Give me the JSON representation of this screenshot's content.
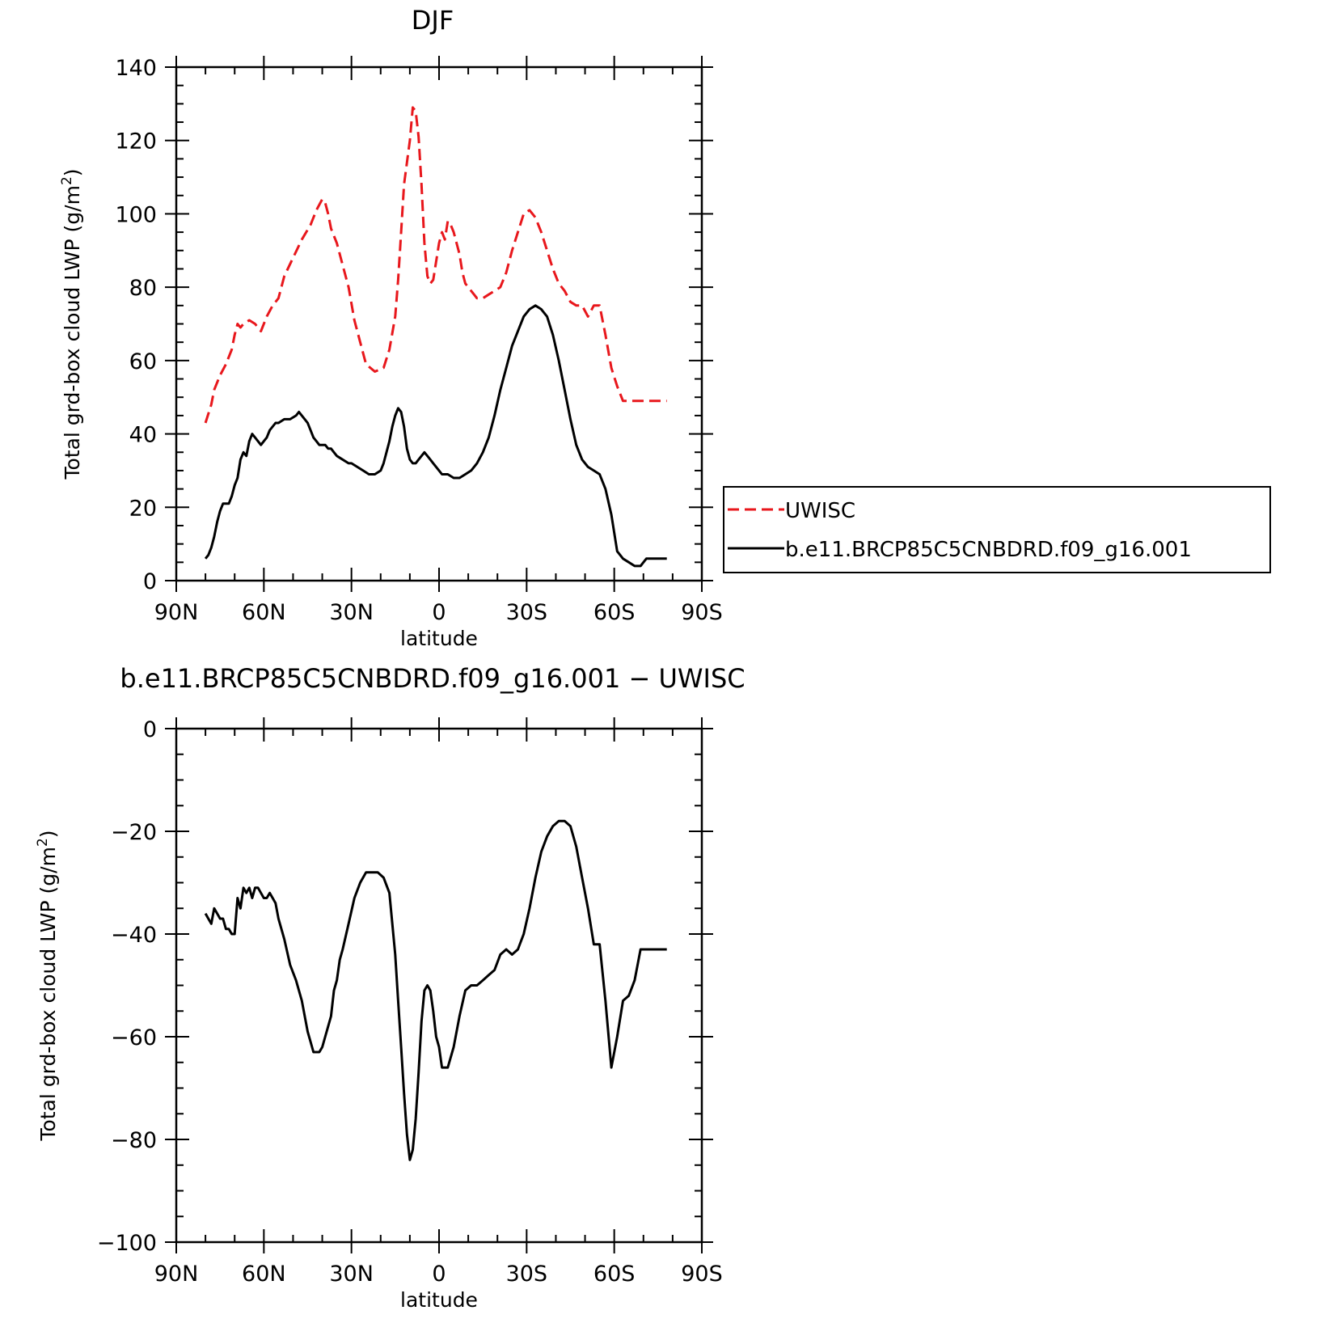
{
  "chart_data": [
    {
      "type": "line",
      "title": "DJF",
      "xlabel": "latitude",
      "ylabel": "Total grd-box cloud LWP (g/m²)",
      "ylabel_main": "Total grd-box cloud LWP (g/m",
      "ylabel_sup": "2",
      "ylabel_close": ")",
      "xlim": [
        90,
        -90
      ],
      "ylim": [
        0,
        140
      ],
      "xticks": [
        90,
        60,
        30,
        0,
        -30,
        -60,
        -90
      ],
      "xtick_labels": [
        "90N",
        "60N",
        "30N",
        "0",
        "30S",
        "60S",
        "90S"
      ],
      "yticks": [
        0,
        20,
        40,
        60,
        80,
        100,
        120,
        140
      ],
      "ytick_labels": [
        "0",
        "20",
        "40",
        "60",
        "80",
        "100",
        "120",
        "140"
      ],
      "legend_position": "right",
      "series": [
        {
          "name": "UWISC",
          "color": "#e8171c",
          "dash": "dashed",
          "x": [
            80,
            78,
            77,
            75,
            73,
            71,
            70,
            69,
            68,
            67,
            65,
            63,
            61,
            59,
            57,
            55,
            53,
            50,
            47,
            44,
            42,
            40,
            39,
            38,
            37,
            35,
            33,
            31,
            29,
            27,
            25,
            22,
            19,
            17,
            15,
            14,
            13,
            12,
            10,
            9,
            8,
            7,
            6,
            5,
            4,
            3,
            2,
            1,
            0,
            -1,
            -2,
            -3,
            -4,
            -5,
            -7,
            -8,
            -9,
            -10,
            -11,
            -12,
            -13,
            -15,
            -17,
            -19,
            -21,
            -23,
            -25,
            -27,
            -29,
            -31,
            -33,
            -35,
            -37,
            -39,
            -41,
            -43,
            -45,
            -47,
            -49,
            -51,
            -53,
            -55,
            -57,
            -59,
            -61,
            -63,
            -65,
            -67,
            -69,
            -70,
            -71,
            -72,
            -73,
            -74,
            -75,
            -76,
            -77,
            -78
          ],
          "y": [
            43,
            48,
            52,
            56,
            59,
            63,
            67,
            70,
            69,
            70,
            71,
            70,
            68,
            72,
            75,
            77,
            83,
            88,
            93,
            97,
            101,
            104,
            103,
            100,
            96,
            92,
            86,
            80,
            71,
            65,
            59,
            57,
            58,
            63,
            72,
            82,
            95,
            108,
            120,
            129,
            128,
            121,
            108,
            92,
            83,
            81,
            82,
            87,
            92,
            95,
            93,
            98,
            97,
            95,
            89,
            84,
            81,
            80,
            79,
            78,
            77,
            77,
            78,
            79,
            80,
            84,
            90,
            95,
            100,
            101,
            99,
            95,
            90,
            85,
            81,
            79,
            76,
            75,
            75,
            72,
            75,
            75,
            67,
            58,
            53,
            49,
            49,
            49,
            49,
            49,
            49,
            49,
            49,
            49,
            49,
            49,
            49,
            49
          ]
        },
        {
          "name": "b.e11.BRCP85C5CNBDRD.f09_g16.001",
          "color": "#000000",
          "dash": "solid",
          "x": [
            80,
            79,
            78,
            77,
            76,
            75,
            74,
            73,
            72,
            71,
            70,
            69,
            68,
            67,
            66,
            65,
            64,
            63,
            61,
            60,
            59,
            58,
            57,
            56,
            55,
            53,
            51,
            49,
            48,
            47,
            46,
            45,
            44,
            43,
            42,
            41,
            40,
            39,
            38,
            37,
            36,
            35,
            33,
            31,
            30,
            28,
            26,
            24,
            22,
            20,
            19,
            18,
            17,
            16,
            15,
            14,
            13,
            12,
            11,
            10,
            9,
            8,
            7,
            6,
            5,
            4,
            3,
            2,
            1,
            0,
            -1,
            -3,
            -5,
            -7,
            -9,
            -11,
            -13,
            -15,
            -17,
            -19,
            -21,
            -23,
            -25,
            -27,
            -29,
            -31,
            -33,
            -35,
            -37,
            -39,
            -41,
            -43,
            -45,
            -47,
            -49,
            -51,
            -53,
            -55,
            -57,
            -59,
            -61,
            -63,
            -65,
            -67,
            -69,
            -70,
            -71,
            -72,
            -73,
            -74,
            -75,
            -76,
            -77,
            -78
          ],
          "y": [
            6,
            7,
            9,
            12,
            16,
            19,
            21,
            21,
            21,
            23,
            26,
            28,
            33,
            35,
            34,
            38,
            40,
            39,
            37,
            38,
            39,
            41,
            42,
            43,
            43,
            44,
            44,
            45,
            46,
            45,
            44,
            43,
            41,
            39,
            38,
            37,
            37,
            37,
            36,
            36,
            35,
            34,
            33,
            32,
            32,
            31,
            30,
            29,
            29,
            30,
            32,
            35,
            38,
            42,
            45,
            47,
            46,
            42,
            36,
            33,
            32,
            32,
            33,
            34,
            35,
            34,
            33,
            32,
            31,
            30,
            29,
            29,
            28,
            28,
            29,
            30,
            32,
            35,
            39,
            45,
            52,
            58,
            64,
            68,
            72,
            74,
            75,
            74,
            72,
            67,
            60,
            52,
            44,
            37,
            33,
            31,
            30,
            29,
            25,
            18,
            8,
            6,
            5,
            4,
            4,
            5,
            6,
            6,
            6,
            6,
            6,
            6,
            6,
            6
          ]
        }
      ]
    },
    {
      "type": "line",
      "title": "b.e11.BRCP85C5CNBDRD.f09_g16.001 − UWISC",
      "xlabel": "latitude",
      "ylabel": "Total grd-box cloud LWP (g/m²)",
      "ylabel_main": "Total grd-box cloud LWP (g/m",
      "ylabel_sup": "2",
      "ylabel_close": ")",
      "xlim": [
        90,
        -90
      ],
      "ylim": [
        -100,
        0
      ],
      "xticks": [
        90,
        60,
        30,
        0,
        -30,
        -60,
        -90
      ],
      "xtick_labels": [
        "90N",
        "60N",
        "30N",
        "0",
        "30S",
        "60S",
        "90S"
      ],
      "yticks": [
        0,
        -20,
        -40,
        -60,
        -80,
        -100
      ],
      "ytick_labels": [
        "0",
        "−20",
        "−40",
        "−60",
        "−80",
        "−100"
      ],
      "series": [
        {
          "name": "",
          "color": "#000000",
          "dash": "solid",
          "x": [
            80,
            79,
            78,
            77,
            76,
            75,
            74,
            73,
            72,
            71,
            70,
            69,
            68,
            67,
            66,
            65,
            64,
            63,
            62,
            61,
            60,
            59,
            58,
            57,
            56,
            55,
            53,
            51,
            49,
            47,
            45,
            43,
            41,
            40,
            39,
            38,
            37,
            36,
            35,
            34,
            33,
            31,
            29,
            27,
            25,
            23,
            21,
            19,
            17,
            16,
            15,
            14,
            13,
            12,
            11,
            10,
            9,
            8,
            7,
            6,
            5,
            4,
            3,
            2,
            1,
            0,
            -1,
            -3,
            -5,
            -7,
            -9,
            -11,
            -13,
            -15,
            -17,
            -19,
            -21,
            -23,
            -25,
            -27,
            -29,
            -31,
            -33,
            -35,
            -37,
            -39,
            -41,
            -43,
            -45,
            -47,
            -49,
            -51,
            -53,
            -55,
            -57,
            -59,
            -61,
            -63,
            -65,
            -67,
            -69,
            -70,
            -71,
            -72,
            -73,
            -74,
            -75,
            -76,
            -77,
            -78
          ],
          "y": [
            -36,
            -37,
            -38,
            -35,
            -36,
            -37,
            -37,
            -39,
            -39,
            -40,
            -40,
            -33,
            -35,
            -31,
            -32,
            -31,
            -33,
            -31,
            -31,
            -32,
            -33,
            -33,
            -32,
            -33,
            -34,
            -37,
            -41,
            -46,
            -49,
            -53,
            -59,
            -63,
            -63,
            -62,
            -60,
            -58,
            -56,
            -51,
            -49,
            -45,
            -43,
            -38,
            -33,
            -30,
            -28,
            -28,
            -28,
            -29,
            -32,
            -38,
            -44,
            -53,
            -62,
            -71,
            -79,
            -84,
            -82,
            -76,
            -67,
            -57,
            -51,
            -50,
            -51,
            -55,
            -60,
            -62,
            -66,
            -66,
            -62,
            -56,
            -51,
            -50,
            -50,
            -49,
            -48,
            -47,
            -44,
            -43,
            -44,
            -43,
            -40,
            -35,
            -29,
            -24,
            -21,
            -19,
            -18,
            -18,
            -19,
            -23,
            -29,
            -35,
            -42,
            -42,
            -53,
            -66,
            -60,
            -53,
            -52,
            -49,
            -43,
            -43,
            -43,
            -43,
            -43,
            -43,
            -43,
            -43,
            -43,
            -43
          ]
        }
      ]
    }
  ]
}
